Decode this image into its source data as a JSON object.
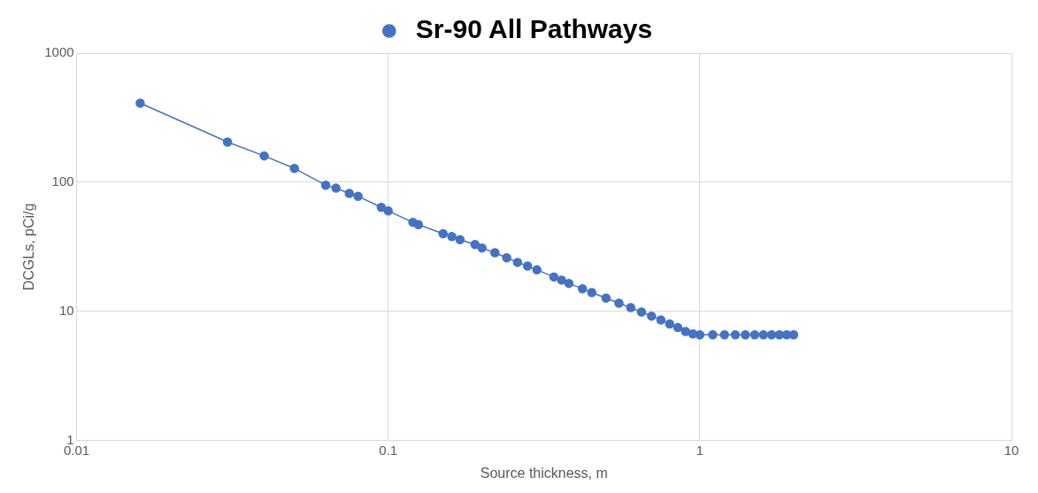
{
  "chart_data": {
    "type": "line",
    "xlabel": "Source thickness, m",
    "ylabel": "DCGLs, pCi/g",
    "log": "xy",
    "xlim": [
      0.01,
      10
    ],
    "xticks": [
      0.01,
      0.1,
      1,
      10
    ],
    "ylim": [
      1,
      1000
    ],
    "yticks": [
      1,
      10,
      100,
      1000
    ],
    "grid": true,
    "legend": "top",
    "marker": "circle",
    "line_style": "solid",
    "x": [
      0.016,
      0.0305,
      0.04,
      0.05,
      0.063,
      0.068,
      0.075,
      0.08,
      0.095,
      0.1,
      0.12,
      0.125,
      0.15,
      0.16,
      0.17,
      0.19,
      0.2,
      0.22,
      0.24,
      0.26,
      0.28,
      0.3,
      0.34,
      0.36,
      0.38,
      0.42,
      0.45,
      0.5,
      0.55,
      0.6,
      0.65,
      0.7,
      0.75,
      0.8,
      0.85,
      0.9,
      0.95,
      1,
      1.1,
      1.2,
      1.3,
      1.4,
      1.5,
      1.6,
      1.7,
      1.8,
      1.9,
      2
    ],
    "series": [
      {
        "name": "Sr-90 All Pathways",
        "color": "#4472c4",
        "values": [
          410,
          205,
          160,
          128,
          95,
          90,
          82,
          78,
          64,
          60,
          49,
          47,
          40,
          38,
          36,
          33,
          31,
          28.5,
          26,
          24,
          22.5,
          21,
          18.5,
          17.5,
          16.5,
          15,
          14,
          12.7,
          11.6,
          10.7,
          9.9,
          9.2,
          8.6,
          8,
          7.5,
          7,
          6.7,
          6.6,
          6.6,
          6.6,
          6.6,
          6.6,
          6.6,
          6.6,
          6.6,
          6.6,
          6.6,
          6.6
        ]
      }
    ]
  }
}
